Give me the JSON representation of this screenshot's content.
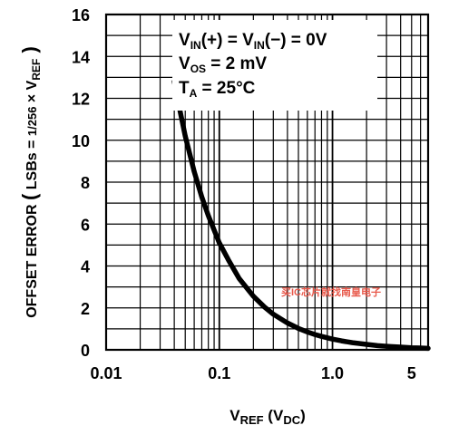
{
  "chart_data": {
    "type": "line",
    "x_scale": "log",
    "xlim": [
      0.01,
      7
    ],
    "ylim": [
      0,
      16
    ],
    "grid": true,
    "x_tick_labels": [
      {
        "value": 0.01,
        "label": "0.01"
      },
      {
        "value": 0.1,
        "label": "0.1"
      },
      {
        "value": 1.0,
        "label": "1.0"
      },
      {
        "value": 5,
        "label": "5"
      }
    ],
    "y_ticks": [
      0,
      2,
      4,
      6,
      8,
      10,
      12,
      14,
      16
    ],
    "xlabel": {
      "main": "V",
      "sub": "REF",
      "units_open": " (V",
      "units_sub": "DC",
      "units_close": ")"
    },
    "ylabel": {
      "text1": "OFFSET ERROR",
      "open_paren": "(",
      "text2": "LSBs = ",
      "frac_num": "1",
      "frac_den": "256",
      "text3": " × V",
      "sub": "REF",
      "close_paren": ")"
    },
    "annotations": [
      {
        "parts": [
          "V",
          "IN",
          "(+) = V",
          "IN",
          "(−) = 0V"
        ]
      },
      {
        "parts": [
          "V",
          "OS",
          " = 2 mV"
        ]
      },
      {
        "parts": [
          "T",
          "A",
          "  =  25°C"
        ]
      }
    ],
    "watermark": "买IC芯片就找南皇电子",
    "series": [
      {
        "x": [
          0.04,
          0.045,
          0.05,
          0.06,
          0.07,
          0.08,
          0.1,
          0.12,
          0.15,
          0.2,
          0.25,
          0.3,
          0.4,
          0.5,
          0.6,
          0.7,
          0.8,
          1.0,
          1.2,
          1.5,
          2.0,
          2.5,
          3.0,
          4.0,
          5.0,
          6.0,
          7.0
        ],
        "y": [
          12.8,
          11.4,
          10.2,
          8.5,
          7.3,
          6.4,
          5.1,
          4.3,
          3.4,
          2.56,
          2.05,
          1.7,
          1.28,
          1.02,
          0.85,
          0.73,
          0.64,
          0.51,
          0.43,
          0.34,
          0.26,
          0.2,
          0.17,
          0.13,
          0.1,
          0.085,
          0.07
        ]
      }
    ]
  }
}
